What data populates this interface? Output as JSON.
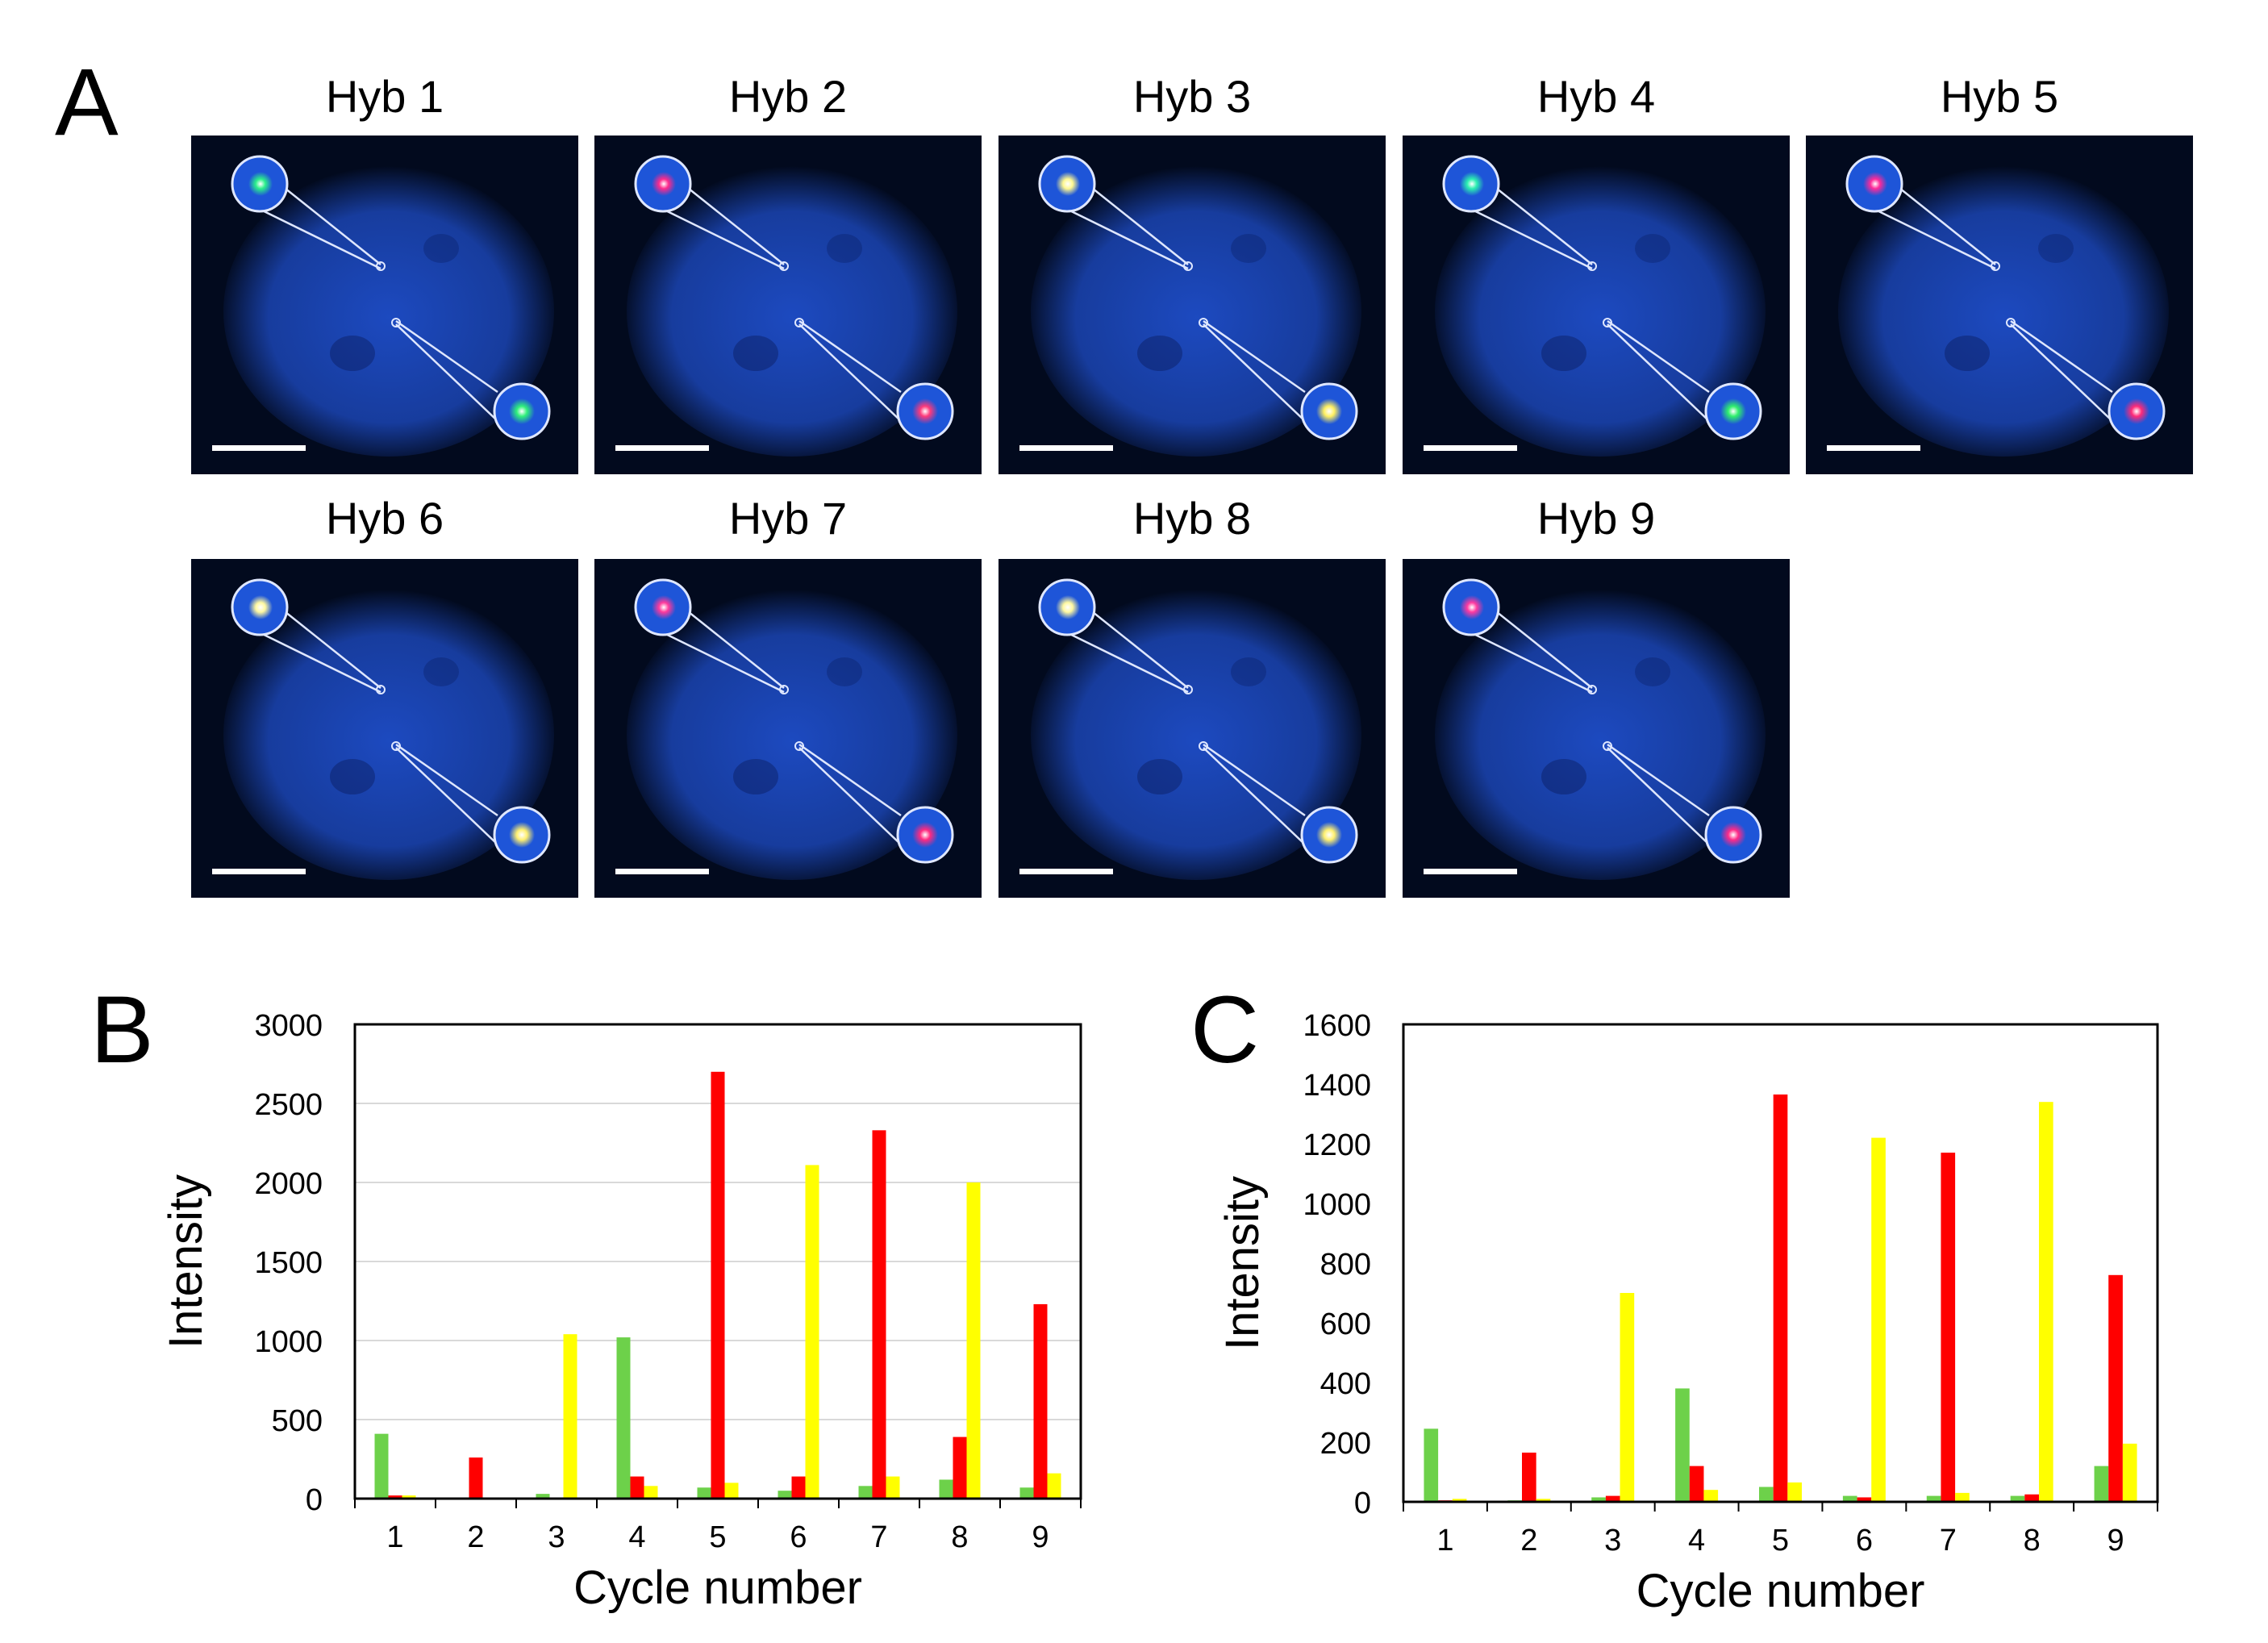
{
  "panels": {
    "a": "A",
    "b": "B",
    "c": "C"
  },
  "hyb_titles": [
    "Hyb 1",
    "Hyb 2",
    "Hyb 3",
    "Hyb 4",
    "Hyb 5",
    "Hyb 6",
    "Hyb 7",
    "Hyb 8",
    "Hyb 9"
  ],
  "spot_colors": [
    {
      "spot1": "#2cf08a",
      "spot2": "#30f07a"
    },
    {
      "spot1": "#ff2a8c",
      "spot2": "#ff3a7a"
    },
    {
      "spot1": "#fff890",
      "spot2": "#fff060"
    },
    {
      "spot1": "#2cf0b0",
      "spot2": "#30f06c"
    },
    {
      "spot1": "#ff2a9a",
      "spot2": "#ff2a78"
    },
    {
      "spot1": "#fff8a0",
      "spot2": "#fff070"
    },
    {
      "spot1": "#ff3a9c",
      "spot2": "#ff2a80"
    },
    {
      "spot1": "#fff8a0",
      "spot2": "#fff070"
    },
    {
      "spot1": "#ff3aa0",
      "spot2": "#ff2a88"
    }
  ],
  "colors": {
    "green": "#6dd14a",
    "red": "#ff0000",
    "yellow": "#ffff00",
    "nucleus": "#1e4dc8",
    "background": "#020a1e"
  },
  "chart_data": [
    {
      "panel": "B",
      "type": "bar",
      "categories": [
        "1",
        "2",
        "3",
        "4",
        "5",
        "6",
        "7",
        "8",
        "9"
      ],
      "xlabel": "Cycle number",
      "ylabel": "Intensity",
      "ylim": [
        0,
        3000
      ],
      "yticks": [
        0,
        500,
        1000,
        1500,
        2000,
        2500,
        3000
      ],
      "grid": true,
      "series": [
        {
          "name": "green",
          "color": "#6dd14a",
          "values": [
            410,
            5,
            30,
            1020,
            70,
            50,
            80,
            120,
            70
          ]
        },
        {
          "name": "red",
          "color": "#ff0000",
          "values": [
            20,
            260,
            5,
            140,
            2700,
            140,
            2330,
            390,
            1230
          ]
        },
        {
          "name": "yellow",
          "color": "#ffff00",
          "values": [
            20,
            5,
            1040,
            80,
            100,
            2110,
            140,
            2000,
            160
          ]
        }
      ]
    },
    {
      "panel": "C",
      "type": "bar",
      "categories": [
        "1",
        "2",
        "3",
        "4",
        "5",
        "6",
        "7",
        "8",
        "9"
      ],
      "xlabel": "Cycle number",
      "ylabel": "Intensity",
      "ylim": [
        0,
        1600
      ],
      "yticks": [
        0,
        200,
        400,
        600,
        800,
        1000,
        1200,
        1400,
        1600
      ],
      "grid": false,
      "series": [
        {
          "name": "green",
          "color": "#6dd14a",
          "values": [
            245,
            5,
            15,
            380,
            50,
            20,
            20,
            20,
            120
          ]
        },
        {
          "name": "red",
          "color": "#ff0000",
          "values": [
            5,
            165,
            20,
            120,
            1365,
            15,
            1170,
            25,
            760
          ]
        },
        {
          "name": "yellow",
          "color": "#ffff00",
          "values": [
            10,
            10,
            700,
            40,
            65,
            1220,
            30,
            1340,
            195
          ]
        }
      ]
    }
  ]
}
